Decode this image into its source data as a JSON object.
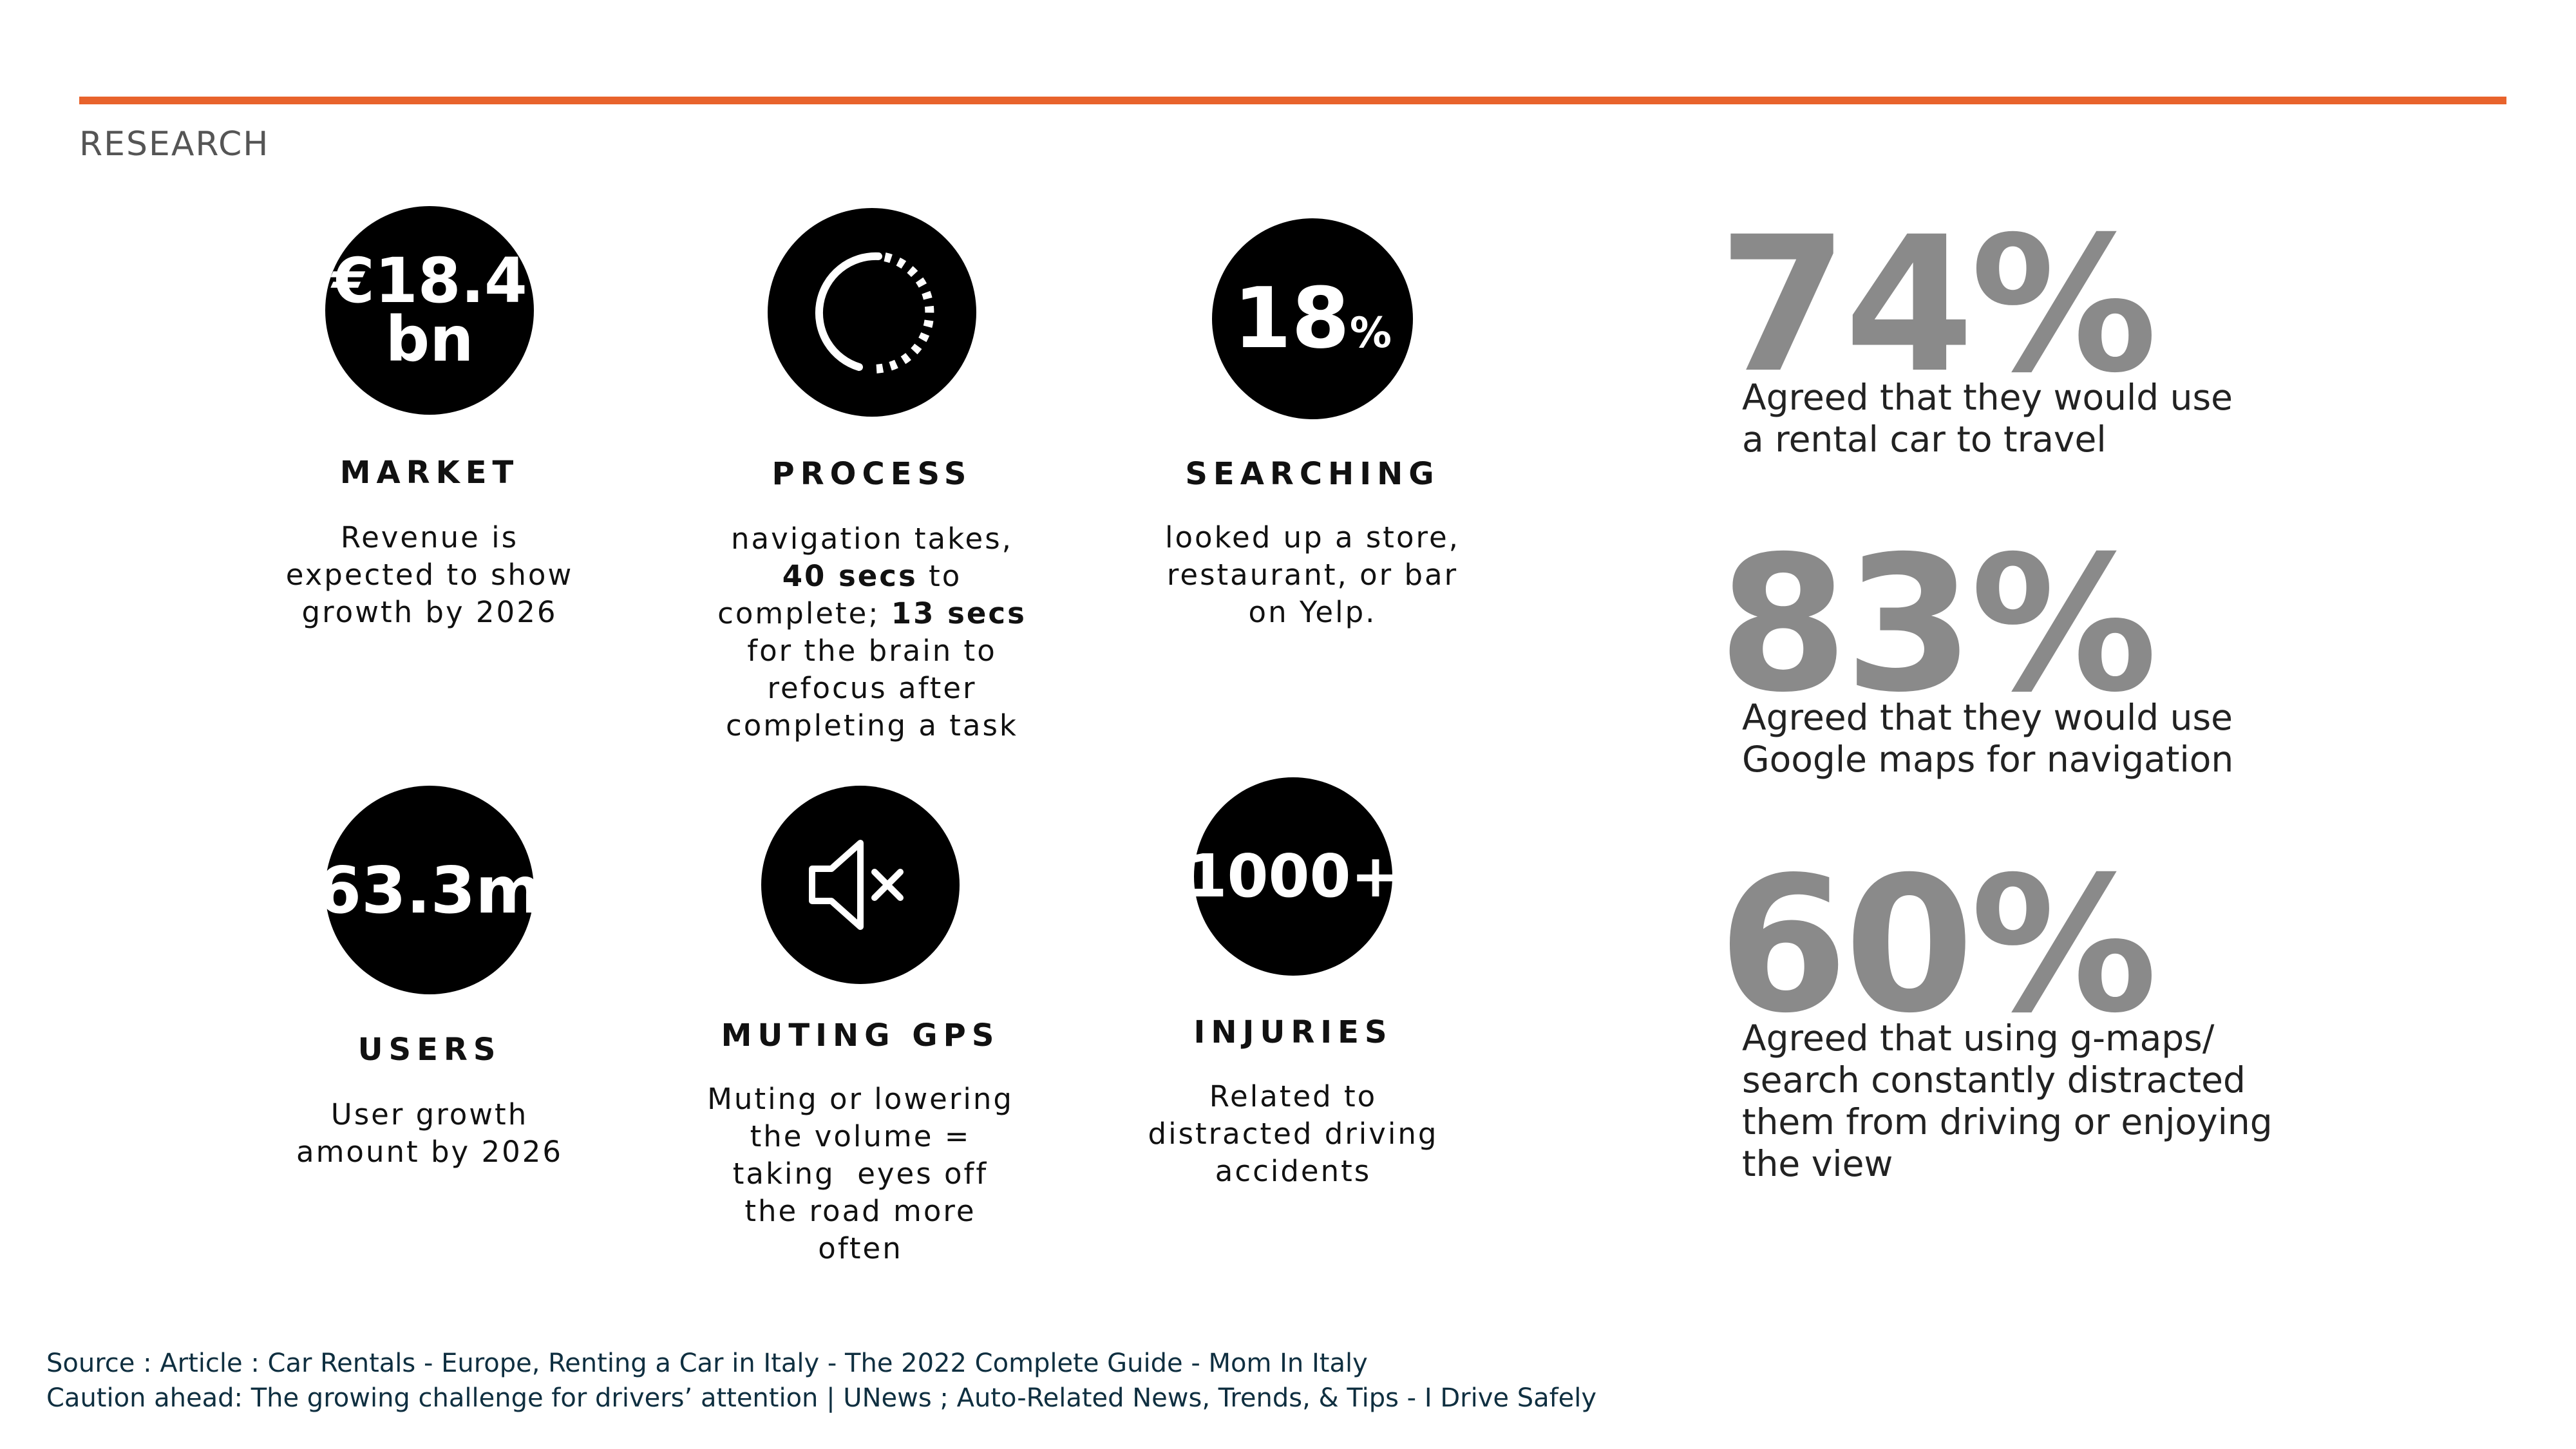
{
  "header": {
    "label": "RESEARCH"
  },
  "cards": [
    {
      "circle": [
        "€18.4",
        "bn"
      ],
      "title": "MARKET",
      "description": [
        "Revenue is",
        "expected to show",
        "growth by 2026"
      ]
    },
    {
      "title": "PROCESS",
      "description": [
        "navigation takes,",
        [
          {
            "text": "40 secs",
            "bold": true
          },
          " to"
        ],
        [
          "complete; ",
          {
            "text": "13 secs",
            "bold": true
          }
        ],
        "for the brain to",
        "refocus after",
        "completing a task"
      ]
    },
    {
      "circle": [
        "18"
      ],
      "circle_suffix": "%",
      "title": "SEARCHING",
      "description": [
        "looked up a store,",
        "restaurant, or bar",
        "on Yelp."
      ]
    },
    {
      "circle": [
        "63.3m"
      ],
      "title": "USERS",
      "description": [
        "User growth",
        "amount by 2026"
      ]
    },
    {
      "title": "MUTING GPS",
      "description": [
        "Muting or lowering",
        "the volume =",
        "taking  eyes off",
        "the road more",
        "often"
      ]
    },
    {
      "circle": [
        "1000+"
      ],
      "title": "INJURIES",
      "description": [
        "Related to",
        "distracted driving",
        "accidents"
      ]
    }
  ],
  "stats": [
    {
      "value": "74%",
      "description": [
        "Agreed that they would use",
        "a rental car to travel"
      ]
    },
    {
      "value": "83%",
      "description": [
        "Agreed that they would use",
        "Google maps for navigation"
      ]
    },
    {
      "value": "60%",
      "description": [
        "Agreed that using g-maps/",
        "search constantly distracted",
        "them from driving or enjoying",
        "the view"
      ]
    }
  ],
  "sources": [
    "Source : Article : Car Rentals - Europe, Renting a Car in Italy - The 2022 Complete Guide - Mom In Italy",
    "Caution ahead: The growing challenge for drivers’ attention | UNews ; Auto-Related News, Trends, & Tips - I Drive Safely"
  ]
}
